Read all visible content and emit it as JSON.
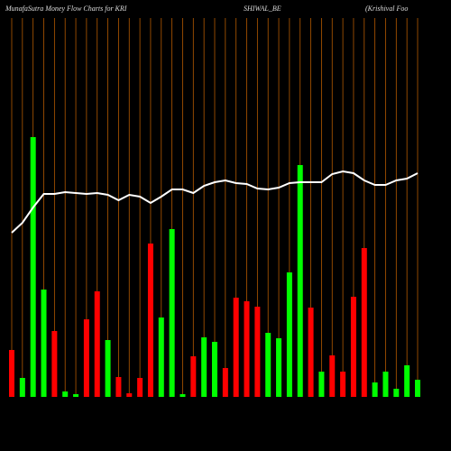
{
  "chart_data": {
    "type": "bar",
    "title_parts": [
      "MunafaSutra  Money Flow  Charts for KRI",
      "SHIWAL_BE",
      "(Krishival Foo"
    ],
    "values": [
      52,
      21,
      288,
      119,
      73,
      6,
      3,
      86,
      117,
      63,
      22,
      4,
      21,
      170,
      88,
      186,
      3,
      45,
      66,
      61,
      32,
      110,
      106,
      100,
      71,
      65,
      138,
      257,
      99,
      28,
      46,
      28,
      111,
      165,
      16,
      28,
      9,
      35,
      19
    ],
    "bar_colors": [
      "#ff0000",
      "#00ff00",
      "#00ff00",
      "#00ff00",
      "#ff0000",
      "#00ff00",
      "#00ff00",
      "#ff0000",
      "#ff0000",
      "#00ff00",
      "#ff0000",
      "#ff0000",
      "#ff0000",
      "#ff0000",
      "#00ff00",
      "#00ff00",
      "#00ff00",
      "#ff0000",
      "#00ff00",
      "#00ff00",
      "#ff0000",
      "#ff0000",
      "#ff0000",
      "#ff0000",
      "#00ff00",
      "#00ff00",
      "#00ff00",
      "#00ff00",
      "#ff0000",
      "#00ff00",
      "#ff0000",
      "#ff0000",
      "#ff0000",
      "#ff0000",
      "#00ff00",
      "#00ff00",
      "#00ff00",
      "#00ff00",
      "#00ff00"
    ],
    "line_values": [
      182,
      193,
      210,
      225,
      225,
      227,
      226,
      225,
      226,
      224,
      218,
      224,
      222,
      215,
      222,
      230,
      230,
      226,
      234,
      238,
      240,
      237,
      236,
      231,
      230,
      232,
      237,
      238,
      238,
      238,
      247,
      250,
      248,
      240,
      235,
      235,
      240,
      242,
      248
    ],
    "line_color": "#ffffff",
    "grid_color": "#b35900",
    "ylim": [
      0,
      440
    ]
  }
}
